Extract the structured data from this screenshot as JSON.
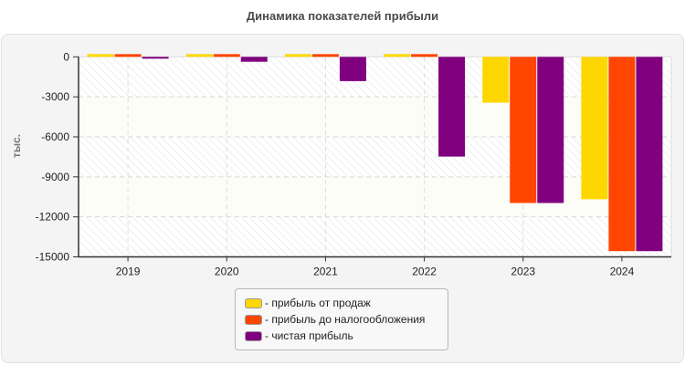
{
  "title": "Динамика показателей прибыли",
  "chart_data": {
    "type": "bar",
    "title": "Динамика показателей прибыли",
    "xlabel": "",
    "ylabel": "тыс.",
    "ylim": [
      -15000,
      0
    ],
    "yticks": [
      0,
      -3000,
      -6000,
      -9000,
      -12000,
      -15000
    ],
    "grid": true,
    "legend_position": "bottom",
    "categories": [
      "2019",
      "2020",
      "2021",
      "2022",
      "2023",
      "2024"
    ],
    "series": [
      {
        "name": "прибыль от продаж",
        "color": "#FFD700",
        "values": [
          100,
          100,
          100,
          100,
          -3440,
          -10680
        ]
      },
      {
        "name": "прибыль до налогообложения",
        "color": "#FF4500",
        "values": [
          100,
          100,
          100,
          100,
          -10960,
          -14570
        ]
      },
      {
        "name": "чистая прибыль",
        "color": "#800080",
        "values": [
          -120,
          -370,
          -1820,
          -7480,
          -10960,
          -14570
        ]
      }
    ]
  },
  "legend": {
    "items": [
      {
        "label": "- прибыль от продаж",
        "color": "#FFD700"
      },
      {
        "label": "- прибыль до налогообложения",
        "color": "#FF4500"
      },
      {
        "label": "- чистая прибыль",
        "color": "#800080"
      }
    ]
  }
}
